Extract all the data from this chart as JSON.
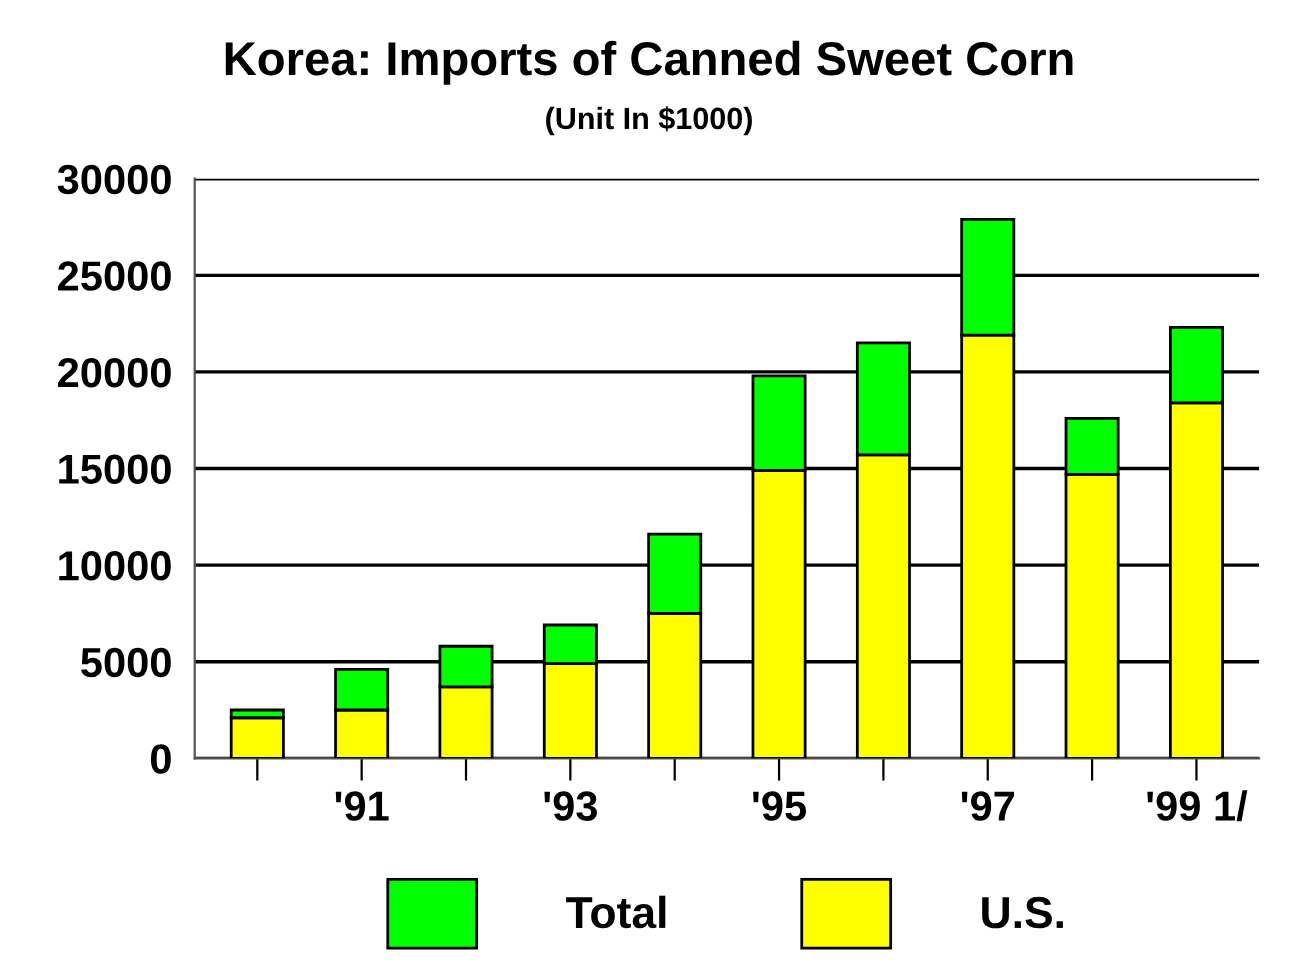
{
  "chart_data": {
    "type": "bar",
    "title": "Korea: Imports of Canned Sweet Corn",
    "subtitle": "(Unit In $1000)",
    "categories": [
      null,
      "'91",
      null,
      "'93",
      null,
      "'95",
      null,
      "'97",
      null,
      "'99 1/"
    ],
    "stacked": true,
    "series": [
      {
        "name": "U.S.",
        "color": "#ffff00",
        "values": [
          2100,
          2500,
          3700,
          4900,
          7500,
          14900,
          15700,
          21900,
          14700,
          18400
        ]
      },
      {
        "name": "Total",
        "color": "#00ff00",
        "values": [
          400,
          2100,
          2100,
          2000,
          4100,
          4900,
          5800,
          6000,
          2900,
          3900
        ]
      }
    ],
    "ylim": [
      0,
      30000
    ],
    "yticks": [
      0,
      5000,
      10000,
      15000,
      20000,
      25000,
      30000
    ],
    "grid": "y",
    "legend": "bottom"
  }
}
